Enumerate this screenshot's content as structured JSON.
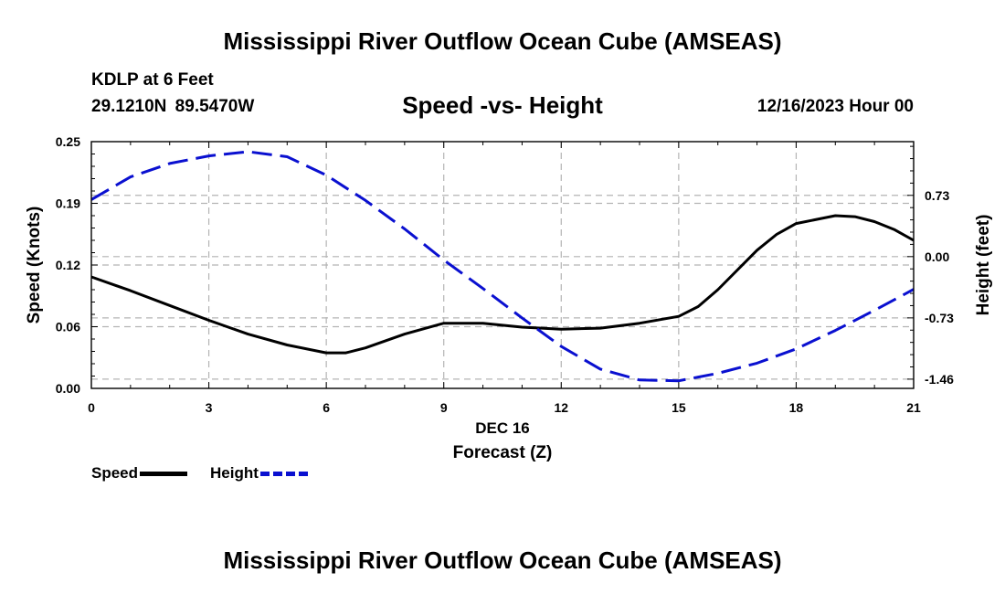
{
  "header": {
    "title": "Mississippi River Outflow Ocean Cube (AMSEAS)",
    "station": "KDLP at 6 Feet",
    "coordinates": "29.1210N  89.5470W",
    "subtitle": "Speed -vs- Height",
    "datetime": "12/16/2023 Hour 00"
  },
  "footer": {
    "title": "Mississippi River Outflow Ocean Cube (AMSEAS)"
  },
  "legend": {
    "speed_label": "Speed",
    "height_label": "Height"
  },
  "colors": {
    "speed": "#000000",
    "height": "#0a10d0",
    "grid": "#b4b4b4"
  },
  "chart_data": {
    "type": "line",
    "title": "Speed -vs- Height",
    "xlabel": "Forecast (Z)",
    "xlabel_date": "DEC 16",
    "ylabel": "Speed (Knots)",
    "y2label": "Height (feet)",
    "xlim": [
      0,
      21
    ],
    "ylim": [
      0,
      0.25
    ],
    "y2lim": [
      -1.57,
      1.37
    ],
    "x_ticks": [
      0,
      3,
      6,
      9,
      12,
      15,
      18,
      21
    ],
    "x_tick_labels": [
      "0",
      "3",
      "6",
      "9",
      "12",
      "15",
      "18",
      "21"
    ],
    "y_ticks": [
      0,
      0.0625,
      0.125,
      0.1875,
      0.25
    ],
    "y_tick_labels": [
      "0.00",
      "0.06",
      "0.12",
      "0.19",
      "0.25"
    ],
    "y2_ticks": [
      -1.46,
      -0.73,
      0,
      0.73
    ],
    "y2_tick_labels": [
      "-1.46",
      "-0.73",
      "0.00",
      "0.73"
    ],
    "grid": true,
    "legend_position": "bottom-left",
    "series": [
      {
        "name": "Speed",
        "axis": "left",
        "style": "solid",
        "x": [
          0,
          1,
          2,
          3,
          4,
          5,
          6,
          6.5,
          7,
          8,
          9,
          10,
          11,
          12,
          13,
          14,
          15,
          15.5,
          16,
          17,
          17.5,
          18,
          19,
          19.5,
          20,
          20.5,
          21
        ],
        "values": [
          0.113,
          0.099,
          0.084,
          0.069,
          0.055,
          0.044,
          0.036,
          0.036,
          0.041,
          0.055,
          0.066,
          0.066,
          0.062,
          0.06,
          0.061,
          0.066,
          0.073,
          0.083,
          0.1,
          0.14,
          0.156,
          0.167,
          0.175,
          0.174,
          0.169,
          0.161,
          0.15
        ]
      },
      {
        "name": "Height",
        "axis": "right",
        "style": "dashed",
        "x": [
          0,
          1,
          2,
          3,
          4,
          5,
          6,
          7,
          8,
          9,
          10,
          11,
          12,
          13,
          14,
          15,
          16,
          17,
          18,
          19,
          20,
          21
        ],
        "values": [
          0.68,
          0.95,
          1.11,
          1.2,
          1.25,
          1.19,
          0.97,
          0.67,
          0.33,
          -0.04,
          -0.38,
          -0.73,
          -1.07,
          -1.34,
          -1.47,
          -1.48,
          -1.39,
          -1.27,
          -1.1,
          -0.88,
          -0.64,
          -0.39
        ]
      }
    ]
  }
}
